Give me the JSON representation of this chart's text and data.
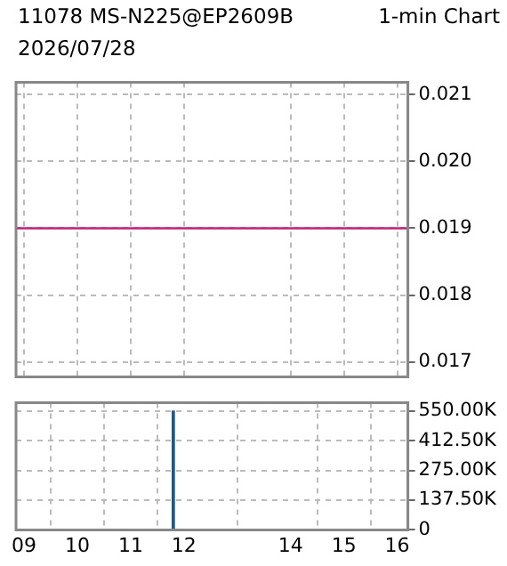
{
  "chart_data": [
    {
      "type": "line",
      "title": "11078 MS-N225@EP2609B",
      "subtitle": "2026/07/28",
      "annotations": [
        "1-min Chart"
      ],
      "x": [
        8.85,
        16.2
      ],
      "series": [
        {
          "color": "#d0187a",
          "values": [
            0.019,
            0.019
          ]
        }
      ],
      "xlim": [
        8.85,
        16.2
      ],
      "xticks": [
        9,
        10,
        11,
        12,
        14,
        15,
        16
      ],
      "ylim": [
        0.01678,
        0.02118
      ],
      "yticks": [
        0.017,
        0.018,
        0.019,
        {
          "value": 0.02,
          "label": "0.020"
        },
        0.021
      ],
      "grid": true,
      "legend": false,
      "marker": "none",
      "line_style": "solid",
      "tick_labels": "y"
    },
    {
      "type": "bar",
      "x": [
        11.8
      ],
      "series": [
        {
          "color": "#1a5a8a",
          "values": [
            550000
          ]
        }
      ],
      "xlim": [
        8.85,
        16.2
      ],
      "xticks": [
        {
          "value": 9,
          "label": "09"
        },
        10,
        11,
        12,
        14,
        15,
        16
      ],
      "ylim": [
        0,
        588000
      ],
      "yticks": [
        0,
        {
          "value": 137500,
          "label": "137.50K"
        },
        {
          "value": 275000,
          "label": "275.00K"
        },
        {
          "value": 412500,
          "label": "412.50K"
        },
        {
          "value": 550000,
          "label": "550.00K"
        }
      ],
      "grid": true,
      "legend": false
    }
  ]
}
